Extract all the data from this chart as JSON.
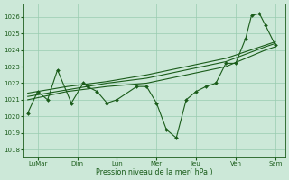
{
  "background_color": "#cce8d8",
  "grid_color": "#99ccb0",
  "line_color": "#1a5c1a",
  "marker_color": "#1a5c1a",
  "xlabel": "Pression niveau de la mer( hPa )",
  "ylim": [
    1017.5,
    1026.8
  ],
  "yticks": [
    1018,
    1019,
    1020,
    1021,
    1022,
    1023,
    1024,
    1025,
    1026
  ],
  "xlim": [
    -0.2,
    13.0
  ],
  "xtick_labels": [
    "LuMar",
    "Dim",
    "Lun",
    "Mer",
    "Jeu",
    "Ven",
    "Sam"
  ],
  "xtick_positions": [
    0.5,
    2.5,
    4.5,
    6.5,
    8.5,
    10.5,
    12.5
  ],
  "main_x": [
    0.0,
    0.5,
    1.0,
    1.5,
    2.2,
    2.8,
    3.0,
    3.5,
    4.0,
    4.5,
    5.5,
    6.0,
    6.5,
    7.0,
    7.5,
    8.0,
    8.5,
    9.0,
    9.5,
    10.0,
    10.5,
    11.0,
    11.3,
    11.7,
    12.0,
    12.5
  ],
  "main_y": [
    1020.2,
    1021.5,
    1021.0,
    1022.8,
    1020.8,
    1022.0,
    1021.8,
    1021.5,
    1020.8,
    1021.0,
    1021.8,
    1021.8,
    1020.8,
    1019.2,
    1018.7,
    1021.0,
    1021.5,
    1021.8,
    1022.0,
    1023.2,
    1023.2,
    1024.7,
    1026.1,
    1026.2,
    1025.5,
    1024.3
  ],
  "trend1_x": [
    0.0,
    2.0,
    4.0,
    6.0,
    8.0,
    10.0,
    12.0,
    12.5
  ],
  "trend1_y": [
    1021.0,
    1021.5,
    1021.8,
    1022.0,
    1022.5,
    1023.0,
    1024.0,
    1024.2
  ],
  "trend2_x": [
    0.0,
    2.0,
    4.0,
    6.0,
    8.0,
    10.0,
    12.0,
    12.5
  ],
  "trend2_y": [
    1021.2,
    1021.6,
    1022.0,
    1022.3,
    1022.8,
    1023.3,
    1024.2,
    1024.4
  ],
  "trend3_x": [
    0.0,
    2.0,
    4.0,
    6.0,
    8.0,
    10.0,
    12.0,
    12.5
  ],
  "trend3_y": [
    1021.4,
    1021.8,
    1022.1,
    1022.5,
    1023.0,
    1023.5,
    1024.3,
    1024.5
  ]
}
